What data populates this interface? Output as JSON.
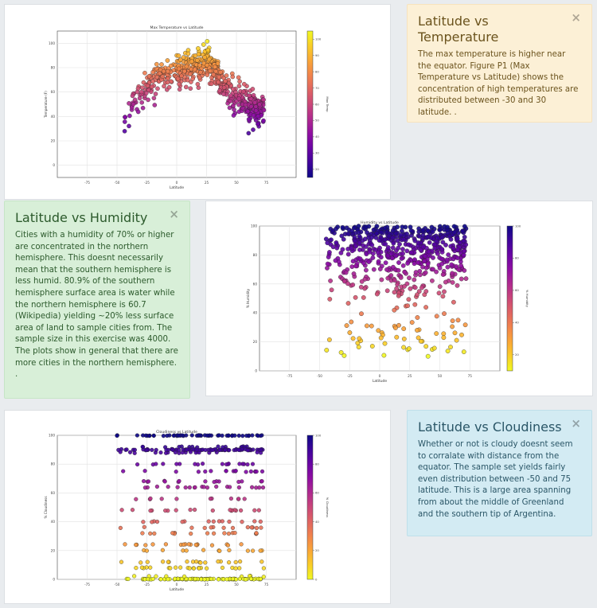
{
  "colors": {
    "warning_bg": "#fcf0d6",
    "success_bg": "#d8efd8",
    "info_bg": "#d3ebf3",
    "plasma_low": "#0d0887",
    "plasma_high": "#f0f921"
  },
  "cards": {
    "temperature": {
      "title": "Latitude vs Temperature",
      "body": "The max temperature is higher near the equator. Figure P1 (Max Temperature vs Latitude) shows the concentration of high temperatures are distributed between -30 and 30 latitude. .",
      "close": "×",
      "close_icon": "close-icon"
    },
    "humidity": {
      "title": "Latitude vs Humidity",
      "body": "Cities with a humidity of 70% or higher are concentrated in the northern hemisphere. This doesnt necessarily mean that the southern hemisphere is less humid. 80.9% of the southern hemisphere surface area is water while the northern hemisphere is 60.7 (Wikipedia) yielding ~20% less surface area of land to sample cities from. The sample size in this exercise was 4000. The plots show in general that there are more cities in the northern hemisphere. .",
      "close": "×",
      "close_icon": "close-icon"
    },
    "cloudiness": {
      "title": "Latitude vs Cloudiness",
      "body": "Whether or not is cloudy doesnt seem to corralate with distance from the equator. The sample set yields fairly even distribution between -50 and 75 latitude. This is a large area spanning from about the middle of Greenland and the southern tip of Argentina.",
      "close": "×",
      "close_icon": "close-icon"
    }
  },
  "chart_data": [
    {
      "id": "temp",
      "type": "scatter",
      "title": "Max Temperature vs Latitude",
      "xlabel": "Latitude",
      "ylabel": "Temperature (F)",
      "colorbar_label": "Max Temp",
      "xlim": [
        -100,
        100
      ],
      "ylim": [
        -10,
        110
      ],
      "xticks": [
        -75,
        -50,
        -25,
        0,
        25,
        50,
        75
      ],
      "yticks": [
        0,
        20,
        40,
        60,
        80,
        100
      ],
      "colorbar_ticks": [
        20,
        30,
        40,
        50,
        60,
        70,
        80,
        90,
        100
      ],
      "clim": [
        15,
        105
      ],
      "grid": true,
      "points_description_model": {
        "x_range": [
          -45,
          73
        ],
        "profile": [
          [
            -45,
            38
          ],
          [
            -35,
            55
          ],
          [
            -25,
            68
          ],
          [
            -15,
            76
          ],
          [
            0,
            80
          ],
          [
            15,
            84
          ],
          [
            25,
            88
          ],
          [
            32,
            82
          ],
          [
            40,
            68
          ],
          [
            50,
            57
          ],
          [
            60,
            52
          ],
          [
            70,
            48
          ]
        ],
        "spread": 11,
        "count": 560
      }
    },
    {
      "id": "hum",
      "type": "scatter",
      "title": "Humidity vs Latitude",
      "xlabel": "Latitude",
      "ylabel": "% Humidity",
      "colorbar_label": "% Humidity",
      "xlim": [
        -100,
        100
      ],
      "ylim": [
        0,
        100
      ],
      "xticks": [
        -75,
        -50,
        -25,
        0,
        25,
        50,
        75
      ],
      "yticks": [
        0,
        20,
        40,
        60,
        80,
        100
      ],
      "colorbar_ticks": [
        20,
        40,
        60,
        80,
        100
      ],
      "clim": [
        10,
        100
      ],
      "grid": true,
      "points_description_model": {
        "x_range": [
          -45,
          72
        ],
        "count": 620
      }
    },
    {
      "id": "cloud",
      "type": "scatter",
      "title": "Cloudiness vs Latitude",
      "xlabel": "Latitude",
      "ylabel": "% Cloudiness",
      "colorbar_label": "% Cloudiness",
      "xlim": [
        -100,
        100
      ],
      "ylim": [
        0,
        100
      ],
      "xticks": [
        -75,
        -50,
        -25,
        0,
        25,
        50,
        75
      ],
      "yticks": [
        0,
        20,
        40,
        60,
        80,
        100
      ],
      "colorbar_ticks": [
        0,
        20,
        40,
        60,
        80,
        100
      ],
      "clim": [
        0,
        100
      ],
      "grid": true,
      "bands": [
        0,
        2,
        8,
        12,
        20,
        24,
        32,
        36,
        40,
        48,
        56,
        64,
        68,
        75,
        80,
        88,
        90,
        92,
        100
      ],
      "points_description_model": {
        "x_range": [
          -50,
          73
        ],
        "count": 600
      }
    }
  ]
}
